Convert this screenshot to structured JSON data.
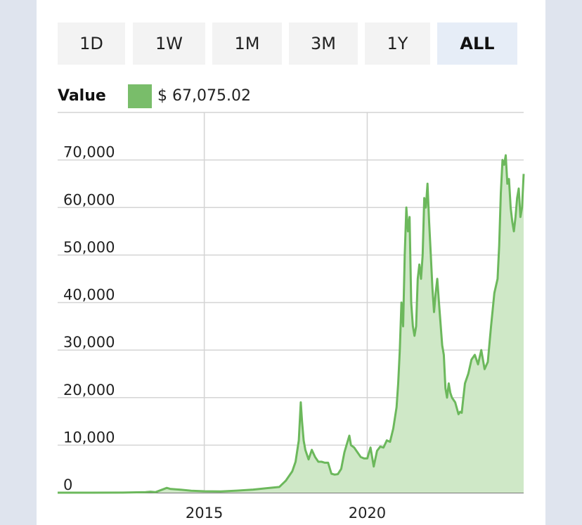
{
  "range_selector": {
    "options": [
      "1D",
      "1W",
      "1M",
      "3M",
      "1Y",
      "ALL"
    ],
    "selected": "ALL"
  },
  "legend": {
    "label": "Value",
    "value": "$ 67,075.02",
    "color": "#79bd6a"
  },
  "chart_data": {
    "type": "area",
    "title": "",
    "xlabel": "",
    "ylabel": "",
    "ylim": [
      0,
      80000
    ],
    "y_ticks": [
      0,
      10000,
      20000,
      30000,
      40000,
      50000,
      60000,
      70000
    ],
    "y_tick_labels": [
      "0",
      "10,000",
      "20,000",
      "30,000",
      "40,000",
      "50,000",
      "60,000",
      "70,000"
    ],
    "x_ticks": [
      2015,
      2020
    ],
    "x_tick_labels": [
      "2015",
      "2020"
    ],
    "xlim": [
      2010.5,
      2024.8
    ],
    "grid": true,
    "line_color": "#6cb85c",
    "fill_color": "#cfe8c7",
    "series": [
      {
        "x": [
          2010.5,
          2011.5,
          2012.5,
          2013.2,
          2013.35,
          2013.5,
          2013.85,
          2013.95,
          2014.3,
          2014.6,
          2015.0,
          2015.5,
          2016.0,
          2016.5,
          2017.0,
          2017.3,
          2017.5,
          2017.7,
          2017.8,
          2017.9,
          2017.96,
          2018.0,
          2018.05,
          2018.1,
          2018.2,
          2018.3,
          2018.4,
          2018.5,
          2018.6,
          2018.7,
          2018.8,
          2018.9,
          2019.0,
          2019.1,
          2019.2,
          2019.3,
          2019.45,
          2019.5,
          2019.6,
          2019.7,
          2019.8,
          2019.9,
          2020.0,
          2020.1,
          2020.2,
          2020.3,
          2020.4,
          2020.5,
          2020.6,
          2020.7,
          2020.8,
          2020.9,
          2020.95,
          2021.0,
          2021.05,
          2021.1,
          2021.15,
          2021.2,
          2021.25,
          2021.3,
          2021.35,
          2021.4,
          2021.45,
          2021.5,
          2021.55,
          2021.6,
          2021.65,
          2021.7,
          2021.75,
          2021.8,
          2021.85,
          2021.9,
          2021.95,
          2022.0,
          2022.05,
          2022.1,
          2022.15,
          2022.2,
          2022.3,
          2022.35,
          2022.4,
          2022.45,
          2022.5,
          2022.55,
          2022.6,
          2022.7,
          2022.8,
          2022.85,
          2022.9,
          2022.95,
          2023.0,
          2023.1,
          2023.2,
          2023.3,
          2023.4,
          2023.5,
          2023.6,
          2023.7,
          2023.8,
          2023.9,
          2024.0,
          2024.05,
          2024.1,
          2024.15,
          2024.2,
          2024.25,
          2024.3,
          2024.35,
          2024.4,
          2024.45,
          2024.5,
          2024.55,
          2024.6,
          2024.65,
          2024.7,
          2024.75,
          2024.8
        ],
        "y": [
          0,
          0,
          10,
          100,
          200,
          100,
          1000,
          800,
          600,
          400,
          300,
          250,
          430,
          650,
          1000,
          1200,
          2500,
          4500,
          6500,
          11000,
          19000,
          15000,
          11000,
          9000,
          7000,
          9000,
          7500,
          6500,
          6500,
          6300,
          6300,
          4000,
          3800,
          3900,
          5000,
          8500,
          12000,
          10000,
          9500,
          8500,
          7500,
          7200,
          7200,
          9500,
          5500,
          8800,
          9700,
          9500,
          11000,
          10700,
          13500,
          18000,
          23000,
          30000,
          40000,
          35000,
          50000,
          60000,
          55000,
          58000,
          40000,
          35000,
          33000,
          35000,
          45000,
          48000,
          45000,
          50000,
          62000,
          60000,
          65000,
          57000,
          50000,
          43000,
          38000,
          42000,
          45000,
          40000,
          31000,
          29000,
          22000,
          20000,
          23000,
          21000,
          20000,
          19000,
          16500,
          17000,
          16800,
          20000,
          23000,
          25000,
          28000,
          29000,
          27000,
          30000,
          26000,
          27500,
          35000,
          42000,
          45000,
          52000,
          63000,
          70000,
          69000,
          71000,
          65000,
          66000,
          60000,
          57000,
          55000,
          58000,
          62000,
          64000,
          58000,
          60000,
          67075
        ]
      }
    ]
  }
}
